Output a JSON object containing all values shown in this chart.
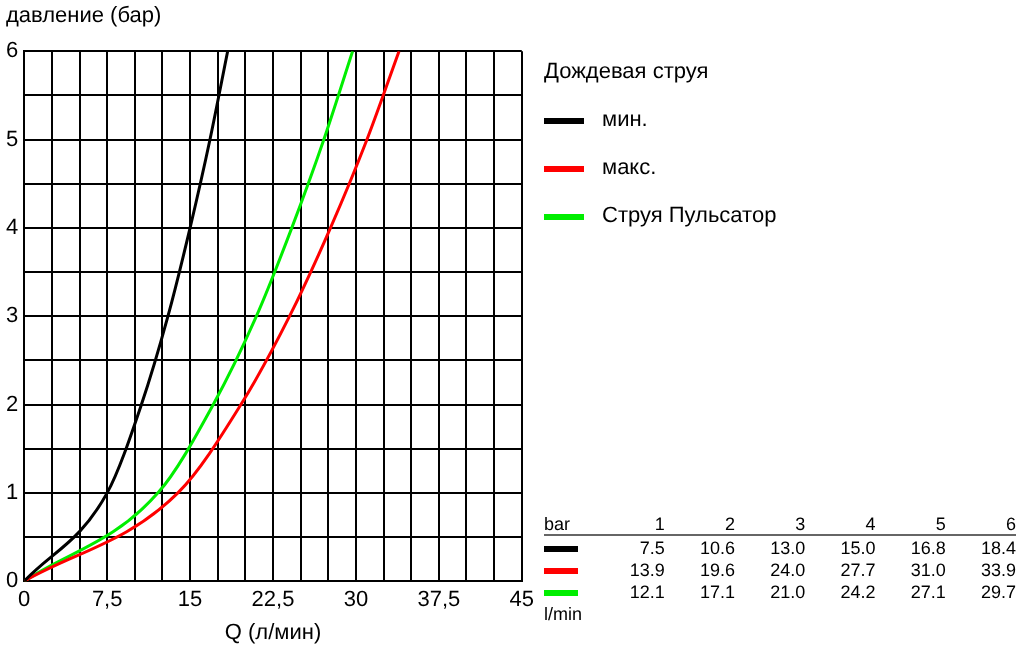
{
  "chart_data": {
    "type": "line",
    "xlabel": "Q (л/мин)",
    "ylabel": "давление (бар)",
    "legend_title": "Дождевая струя",
    "series": [
      {
        "name": "мин.",
        "color": "#000000",
        "x": [
          0,
          7.5,
          10.6,
          13.0,
          15.0,
          16.8,
          18.4
        ],
        "values": [
          0,
          1,
          2,
          3,
          4,
          5,
          6
        ]
      },
      {
        "name": "макс.",
        "color": "#ff0000",
        "x": [
          0,
          13.9,
          19.6,
          24.0,
          27.7,
          31.0,
          33.9
        ],
        "values": [
          0,
          1,
          2,
          3,
          4,
          5,
          6
        ]
      },
      {
        "name": "Струя Пульсатор",
        "color": "#00ee00",
        "x": [
          0,
          12.1,
          17.1,
          21.0,
          24.2,
          27.1,
          29.7
        ],
        "values": [
          0,
          1,
          2,
          3,
          4,
          5,
          6
        ]
      }
    ],
    "xlim": [
      0,
      45
    ],
    "xticks": [
      0,
      {
        "value": 2.5,
        "label": null
      },
      {
        "value": 5,
        "label": null
      },
      {
        "value": 7.5,
        "label": "7,5"
      },
      {
        "value": 10,
        "label": null
      },
      {
        "value": 12.5,
        "label": null
      },
      15,
      {
        "value": 17.5,
        "label": null
      },
      {
        "value": 20,
        "label": null
      },
      {
        "value": 22.5,
        "label": "22,5"
      },
      {
        "value": 25,
        "label": null
      },
      {
        "value": 27.5,
        "label": null
      },
      30,
      {
        "value": 32.5,
        "label": null
      },
      {
        "value": 35,
        "label": null
      },
      {
        "value": 37.5,
        "label": "37,5"
      },
      {
        "value": 40,
        "label": null
      },
      {
        "value": 42.5,
        "label": null
      },
      45
    ],
    "ylim": [
      0,
      6
    ],
    "yticks": [
      0,
      {
        "value": 0.5,
        "label": null
      },
      1,
      {
        "value": 1.5,
        "label": null
      },
      2,
      {
        "value": 2.5,
        "label": null
      },
      3,
      {
        "value": 3.5,
        "label": null
      },
      4,
      {
        "value": 4.5,
        "label": null
      },
      5,
      {
        "value": 5.5,
        "label": null
      },
      6
    ],
    "grid": true,
    "legend": "right",
    "marker": "none",
    "line_style": "solid",
    "annotations": [
      "bar",
      "1",
      "2",
      "3",
      "4",
      "5",
      "6",
      "7.5",
      "10.6",
      "13.0",
      "15.0",
      "16.8",
      "18.4",
      "13.9",
      "19.6",
      "24.0",
      "27.7",
      "31.0",
      "33.9",
      "12.1",
      "17.1",
      "21.0",
      "24.2",
      "27.1",
      "29.7",
      "l/min"
    ]
  }
}
